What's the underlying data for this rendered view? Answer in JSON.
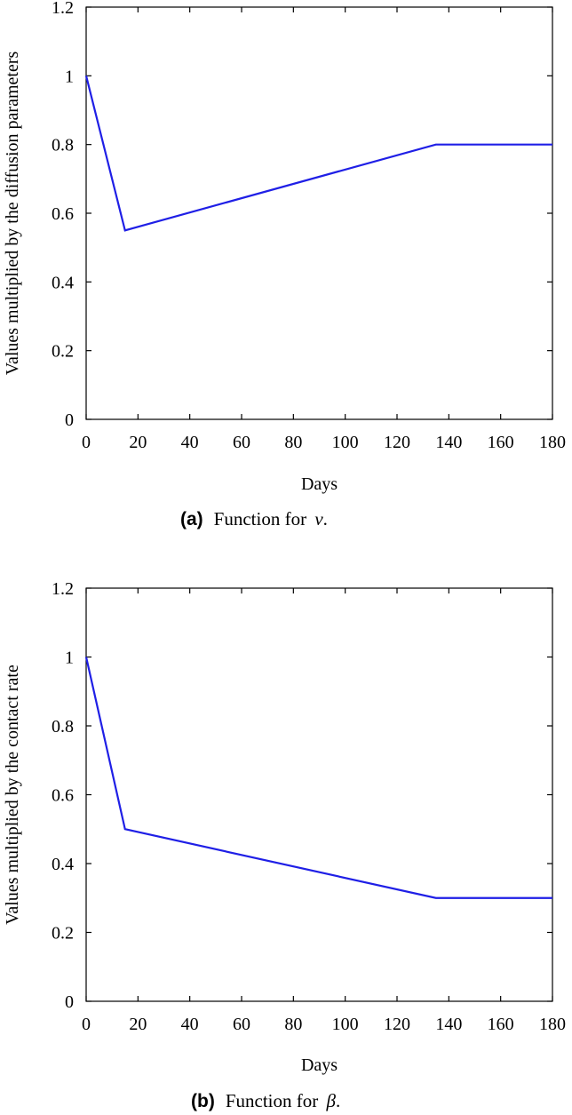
{
  "chart_data": [
    {
      "type": "line",
      "caption_label": "(a)",
      "caption_text": "Function for ",
      "caption_symbol": "ν",
      "caption_end": ".",
      "xlabel": "Days",
      "ylabel": "Values multiplied by the diffusion parameters",
      "xlim": [
        0,
        180
      ],
      "ylim": [
        0,
        1.2
      ],
      "x_ticks": [
        0,
        20,
        40,
        60,
        80,
        100,
        120,
        140,
        160,
        180
      ],
      "y_ticks": [
        0,
        0.2,
        0.4,
        0.6,
        0.8,
        1,
        1.2
      ],
      "grid": false,
      "color": "#1f1fe6",
      "series": [
        {
          "x": [
            0,
            15,
            135,
            180
          ],
          "y": [
            1,
            0.55,
            0.8,
            0.8
          ]
        }
      ]
    },
    {
      "type": "line",
      "caption_label": "(b)",
      "caption_text": "Function for ",
      "caption_symbol": "β",
      "caption_end": ".",
      "xlabel": "Days",
      "ylabel": "Values multiplied by the contact rate",
      "xlim": [
        0,
        180
      ],
      "ylim": [
        0,
        1.2
      ],
      "x_ticks": [
        0,
        20,
        40,
        60,
        80,
        100,
        120,
        140,
        160,
        180
      ],
      "y_ticks": [
        0,
        0.2,
        0.4,
        0.6,
        0.8,
        1,
        1.2
      ],
      "grid": false,
      "color": "#1f1fe6",
      "series": [
        {
          "x": [
            0,
            15,
            135,
            180
          ],
          "y": [
            1,
            0.5,
            0.3,
            0.3
          ]
        }
      ]
    }
  ]
}
